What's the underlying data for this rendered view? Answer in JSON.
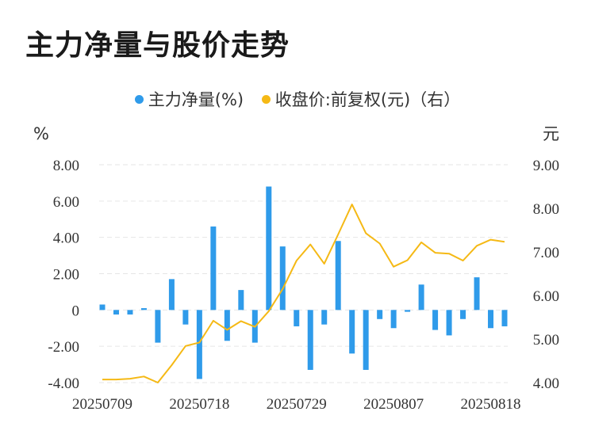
{
  "title": "主力净量与股价走势",
  "legend": [
    {
      "label": "主力净量(%)",
      "color": "#2f9bea"
    },
    {
      "label": "收盘价:前复权(元)（右）",
      "color": "#f5b915"
    }
  ],
  "chart_data": {
    "type": "bar+line",
    "title": "主力净量与股价走势",
    "left_axis": {
      "unit": "%",
      "min": -4,
      "max": 8,
      "ticks": [
        "8.00",
        "6.00",
        "4.00",
        "2.00",
        "0",
        "-2.00",
        "-4.00"
      ]
    },
    "right_axis": {
      "unit": "元",
      "min": 4,
      "max": 9,
      "ticks": [
        "9.00",
        "8.00",
        "7.00",
        "6.00",
        "5.00",
        "4.00"
      ]
    },
    "x_tick_labels": [
      "20250709",
      "20250718",
      "20250729",
      "20250807",
      "20250818"
    ],
    "x_tick_index": [
      0,
      7,
      14,
      21,
      28
    ],
    "grid": true,
    "series": [
      {
        "name": "主力净量(%)",
        "type": "bar",
        "color": "#2f9bea",
        "values": [
          0.3,
          -0.25,
          -0.25,
          0.1,
          -1.8,
          1.7,
          -0.8,
          -3.8,
          4.6,
          -1.7,
          1.1,
          -1.8,
          6.8,
          3.5,
          -0.9,
          -3.3,
          -0.8,
          3.8,
          -2.4,
          -3.3,
          -0.5,
          -1.0,
          -0.1,
          1.4,
          -1.1,
          -1.4,
          -0.5,
          1.8,
          -1.0,
          -0.9
        ]
      },
      {
        "name": "收盘价:前复权(元)（右）",
        "type": "line",
        "color": "#f5b915",
        "values": [
          4.07,
          4.07,
          4.09,
          4.14,
          4.0,
          4.4,
          4.84,
          4.92,
          5.42,
          5.21,
          5.41,
          5.28,
          5.64,
          6.15,
          6.8,
          7.17,
          6.73,
          7.4,
          8.09,
          7.43,
          7.19,
          6.66,
          6.81,
          7.22,
          6.98,
          6.96,
          6.8,
          7.14,
          7.28,
          7.23
        ]
      }
    ]
  }
}
